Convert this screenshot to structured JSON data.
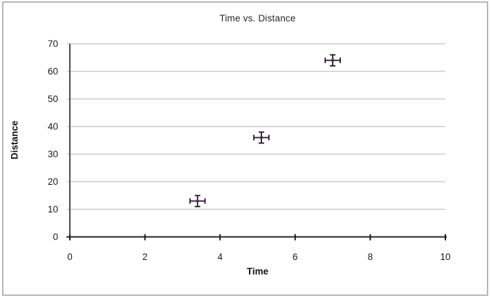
{
  "chart_data": {
    "type": "scatter",
    "title": "Time vs. Distance",
    "xlabel": "Time",
    "ylabel": "Distance",
    "xlim": [
      0,
      10
    ],
    "ylim": [
      0,
      70
    ],
    "x_ticks": [
      0,
      2,
      4,
      6,
      8,
      10
    ],
    "y_ticks": [
      0,
      10,
      20,
      30,
      40,
      50,
      60,
      70
    ],
    "grid": "horizontal-only",
    "legend": "none",
    "series": [
      {
        "name": "Distance",
        "marker": "diamond",
        "marker_color": "#5e2366",
        "error_bar_color": "#161616",
        "points": [
          {
            "x": 3.4,
            "y": 13,
            "x_err": 0.2,
            "y_err": 2
          },
          {
            "x": 5.1,
            "y": 36,
            "x_err": 0.2,
            "y_err": 2
          },
          {
            "x": 7.0,
            "y": 64,
            "x_err": 0.2,
            "y_err": 2
          }
        ]
      }
    ],
    "colors": {
      "background": "#ffffff",
      "frame_border": "#b5b5b5",
      "gridline": "#c9c9c9",
      "axis_line": "#4a4a4a",
      "tick_mark": "#1a1a1a",
      "text": "#1a1a1a"
    }
  }
}
